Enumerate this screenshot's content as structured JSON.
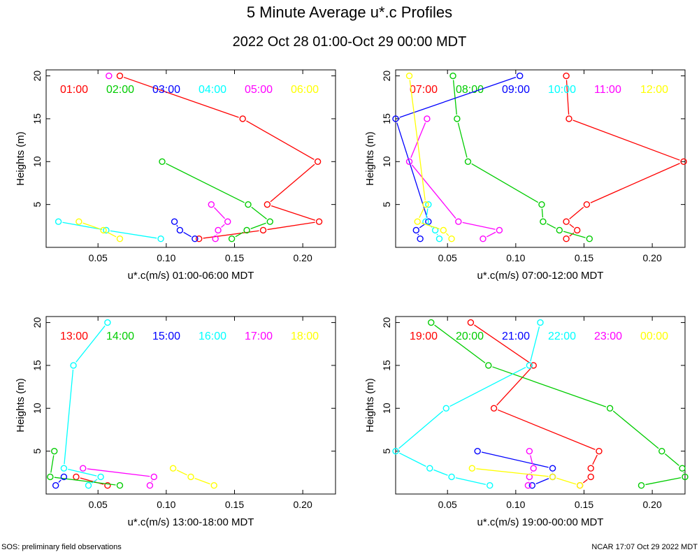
{
  "title": "5 Minute Average u*.c Profiles",
  "subtitle": "2022 Oct 28 01:00-Oct 29 00:00 MDT",
  "footer_left": "SOS: preliminary field observations",
  "footer_right": "NCAR 17:07 Oct 29 2022 MDT",
  "colors": [
    "#ff0000",
    "#00cc00",
    "#0000ff",
    "#00ffff",
    "#ff00ff",
    "#ffff00"
  ],
  "chart_data": [
    {
      "type": "line",
      "xlabel": "u*.c(m/s) 01:00-06:00 MDT",
      "ylabel": "Heights (m)",
      "xlim": [
        0.012,
        0.224
      ],
      "ylim": [
        0,
        20.7
      ],
      "xticks": [
        "0.05",
        "0.10",
        "0.15",
        "0.20"
      ],
      "yticks": [
        "5",
        "10",
        "15",
        "20"
      ],
      "series": [
        {
          "name": "01:00",
          "points": [
            [
              0.124,
              1
            ],
            [
              0.171,
              2
            ],
            [
              0.212,
              3
            ],
            [
              0.174,
              5
            ],
            [
              0.211,
              10
            ],
            [
              0.156,
              15
            ],
            [
              0.066,
              20
            ]
          ]
        },
        {
          "name": "02:00",
          "points": [
            [
              0.148,
              1
            ],
            [
              0.159,
              2
            ],
            [
              0.176,
              3
            ],
            [
              0.16,
              5
            ],
            [
              0.097,
              10
            ]
          ]
        },
        {
          "name": "03:00",
          "points": [
            [
              0.121,
              1
            ],
            [
              0.11,
              2
            ],
            [
              0.106,
              3
            ]
          ]
        },
        {
          "name": "04:00",
          "points": [
            [
              0.096,
              1
            ],
            [
              0.056,
              2
            ],
            [
              0.021,
              3
            ]
          ]
        },
        {
          "name": "05:00",
          "points": [
            [
              0.136,
              1
            ],
            [
              0.138,
              2
            ],
            [
              0.145,
              3
            ],
            [
              0.133,
              5
            ]
          ]
        },
        {
          "name": "06:00",
          "points": [
            [
              0.066,
              1
            ],
            [
              0.054,
              2
            ],
            [
              0.036,
              3
            ]
          ]
        }
      ],
      "extra_points": [
        {
          "series": 4,
          "x": 0.058,
          "y": 20
        }
      ]
    },
    {
      "type": "line",
      "xlabel": "u*.c(m/s) 07:00-12:00 MDT",
      "ylabel": "Heights (m)",
      "xlim": [
        0.012,
        0.224
      ],
      "ylim": [
        0,
        20.7
      ],
      "xticks": [
        "0.05",
        "0.10",
        "0.15",
        "0.20"
      ],
      "yticks": [
        "5",
        "10",
        "15",
        "20"
      ],
      "series": [
        {
          "name": "07:00",
          "points": [
            [
              0.137,
              1
            ],
            [
              0.145,
              2
            ],
            [
              0.137,
              3
            ],
            [
              0.152,
              5
            ],
            [
              0.223,
              10
            ],
            [
              0.139,
              15
            ],
            [
              0.137,
              20
            ]
          ]
        },
        {
          "name": "08:00",
          "points": [
            [
              0.154,
              1
            ],
            [
              0.132,
              2
            ],
            [
              0.12,
              3
            ],
            [
              0.119,
              5
            ],
            [
              0.065,
              10
            ],
            [
              0.057,
              15
            ],
            [
              0.054,
              20
            ]
          ]
        },
        {
          "name": "09:00",
          "points": [
            [
              0.03,
              1
            ],
            [
              0.027,
              2
            ],
            [
              0.036,
              3
            ],
            [
              0.012,
              15
            ],
            [
              0.103,
              20
            ]
          ]
        },
        {
          "name": "10:00",
          "points": [
            [
              0.044,
              1
            ],
            [
              0.041,
              2
            ],
            [
              0.034,
              3
            ],
            [
              0.036,
              5
            ]
          ]
        },
        {
          "name": "11:00",
          "points": [
            [
              0.076,
              1
            ],
            [
              0.088,
              2
            ],
            [
              0.058,
              3
            ],
            [
              0.022,
              10
            ],
            [
              0.035,
              15
            ]
          ]
        },
        {
          "name": "12:00",
          "points": [
            [
              0.053,
              1
            ],
            [
              0.047,
              2
            ],
            [
              0.028,
              3
            ],
            [
              0.034,
              5
            ],
            [
              0.022,
              20
            ]
          ]
        }
      ]
    },
    {
      "type": "line",
      "xlabel": "u*.c(m/s) 13:00-18:00 MDT",
      "ylabel": "Heights (m)",
      "xlim": [
        0.012,
        0.224
      ],
      "ylim": [
        0,
        20.7
      ],
      "xticks": [
        "0.05",
        "0.10",
        "0.15",
        "0.20"
      ],
      "yticks": [
        "5",
        "10",
        "15",
        "20"
      ],
      "series": [
        {
          "name": "13:00",
          "points": [
            [
              0.057,
              1
            ],
            [
              0.034,
              2
            ]
          ]
        },
        {
          "name": "14:00",
          "points": [
            [
              0.066,
              1
            ],
            [
              0.015,
              2
            ],
            [
              0.018,
              5
            ]
          ]
        },
        {
          "name": "15:00",
          "points": [
            [
              0.019,
              1
            ],
            [
              0.025,
              2
            ]
          ]
        },
        {
          "name": "16:00",
          "points": [
            [
              0.043,
              1
            ],
            [
              0.052,
              2
            ],
            [
              0.025,
              3
            ],
            [
              0.032,
              15
            ],
            [
              0.057,
              20
            ]
          ]
        },
        {
          "name": "17:00",
          "points": [
            [
              0.088,
              1
            ],
            [
              0.091,
              2
            ],
            [
              0.039,
              3
            ]
          ]
        },
        {
          "name": "18:00",
          "points": [
            [
              0.135,
              1
            ],
            [
              0.118,
              2
            ],
            [
              0.105,
              3
            ]
          ]
        }
      ]
    },
    {
      "type": "line",
      "xlabel": "u*.c(m/s) 19:00-00:00 MDT",
      "ylabel": "Heights (m)",
      "xlim": [
        0.012,
        0.224
      ],
      "ylim": [
        0,
        20.7
      ],
      "xticks": [
        "0.05",
        "0.10",
        "0.15",
        "0.20"
      ],
      "yticks": [
        "5",
        "10",
        "15",
        "20"
      ],
      "series": [
        {
          "name": "19:00",
          "points": [
            [
              0.147,
              1
            ],
            [
              0.155,
              2
            ],
            [
              0.155,
              3
            ],
            [
              0.161,
              5
            ],
            [
              0.084,
              10
            ],
            [
              0.113,
              15
            ],
            [
              0.067,
              20
            ]
          ]
        },
        {
          "name": "20:00",
          "points": [
            [
              0.192,
              1
            ],
            [
              0.224,
              2
            ],
            [
              0.222,
              3
            ],
            [
              0.207,
              5
            ],
            [
              0.169,
              10
            ],
            [
              0.08,
              15
            ],
            [
              0.038,
              20
            ]
          ]
        },
        {
          "name": "21:00",
          "points": [
            [
              0.112,
              1
            ],
            [
              0.127,
              2
            ],
            [
              0.127,
              3
            ],
            [
              0.072,
              5
            ]
          ]
        },
        {
          "name": "22:00",
          "points": [
            [
              0.081,
              1
            ],
            [
              0.053,
              2
            ],
            [
              0.037,
              3
            ],
            [
              0.012,
              5
            ],
            [
              0.049,
              10
            ],
            [
              0.11,
              15
            ],
            [
              0.118,
              20
            ]
          ]
        },
        {
          "name": "23:00",
          "points": [
            [
              0.109,
              1
            ],
            [
              0.11,
              2
            ],
            [
              0.113,
              3
            ],
            [
              0.11,
              5
            ]
          ]
        },
        {
          "name": "00:00",
          "points": [
            [
              0.147,
              1
            ],
            [
              0.127,
              2
            ],
            [
              0.068,
              3
            ]
          ]
        }
      ]
    }
  ]
}
